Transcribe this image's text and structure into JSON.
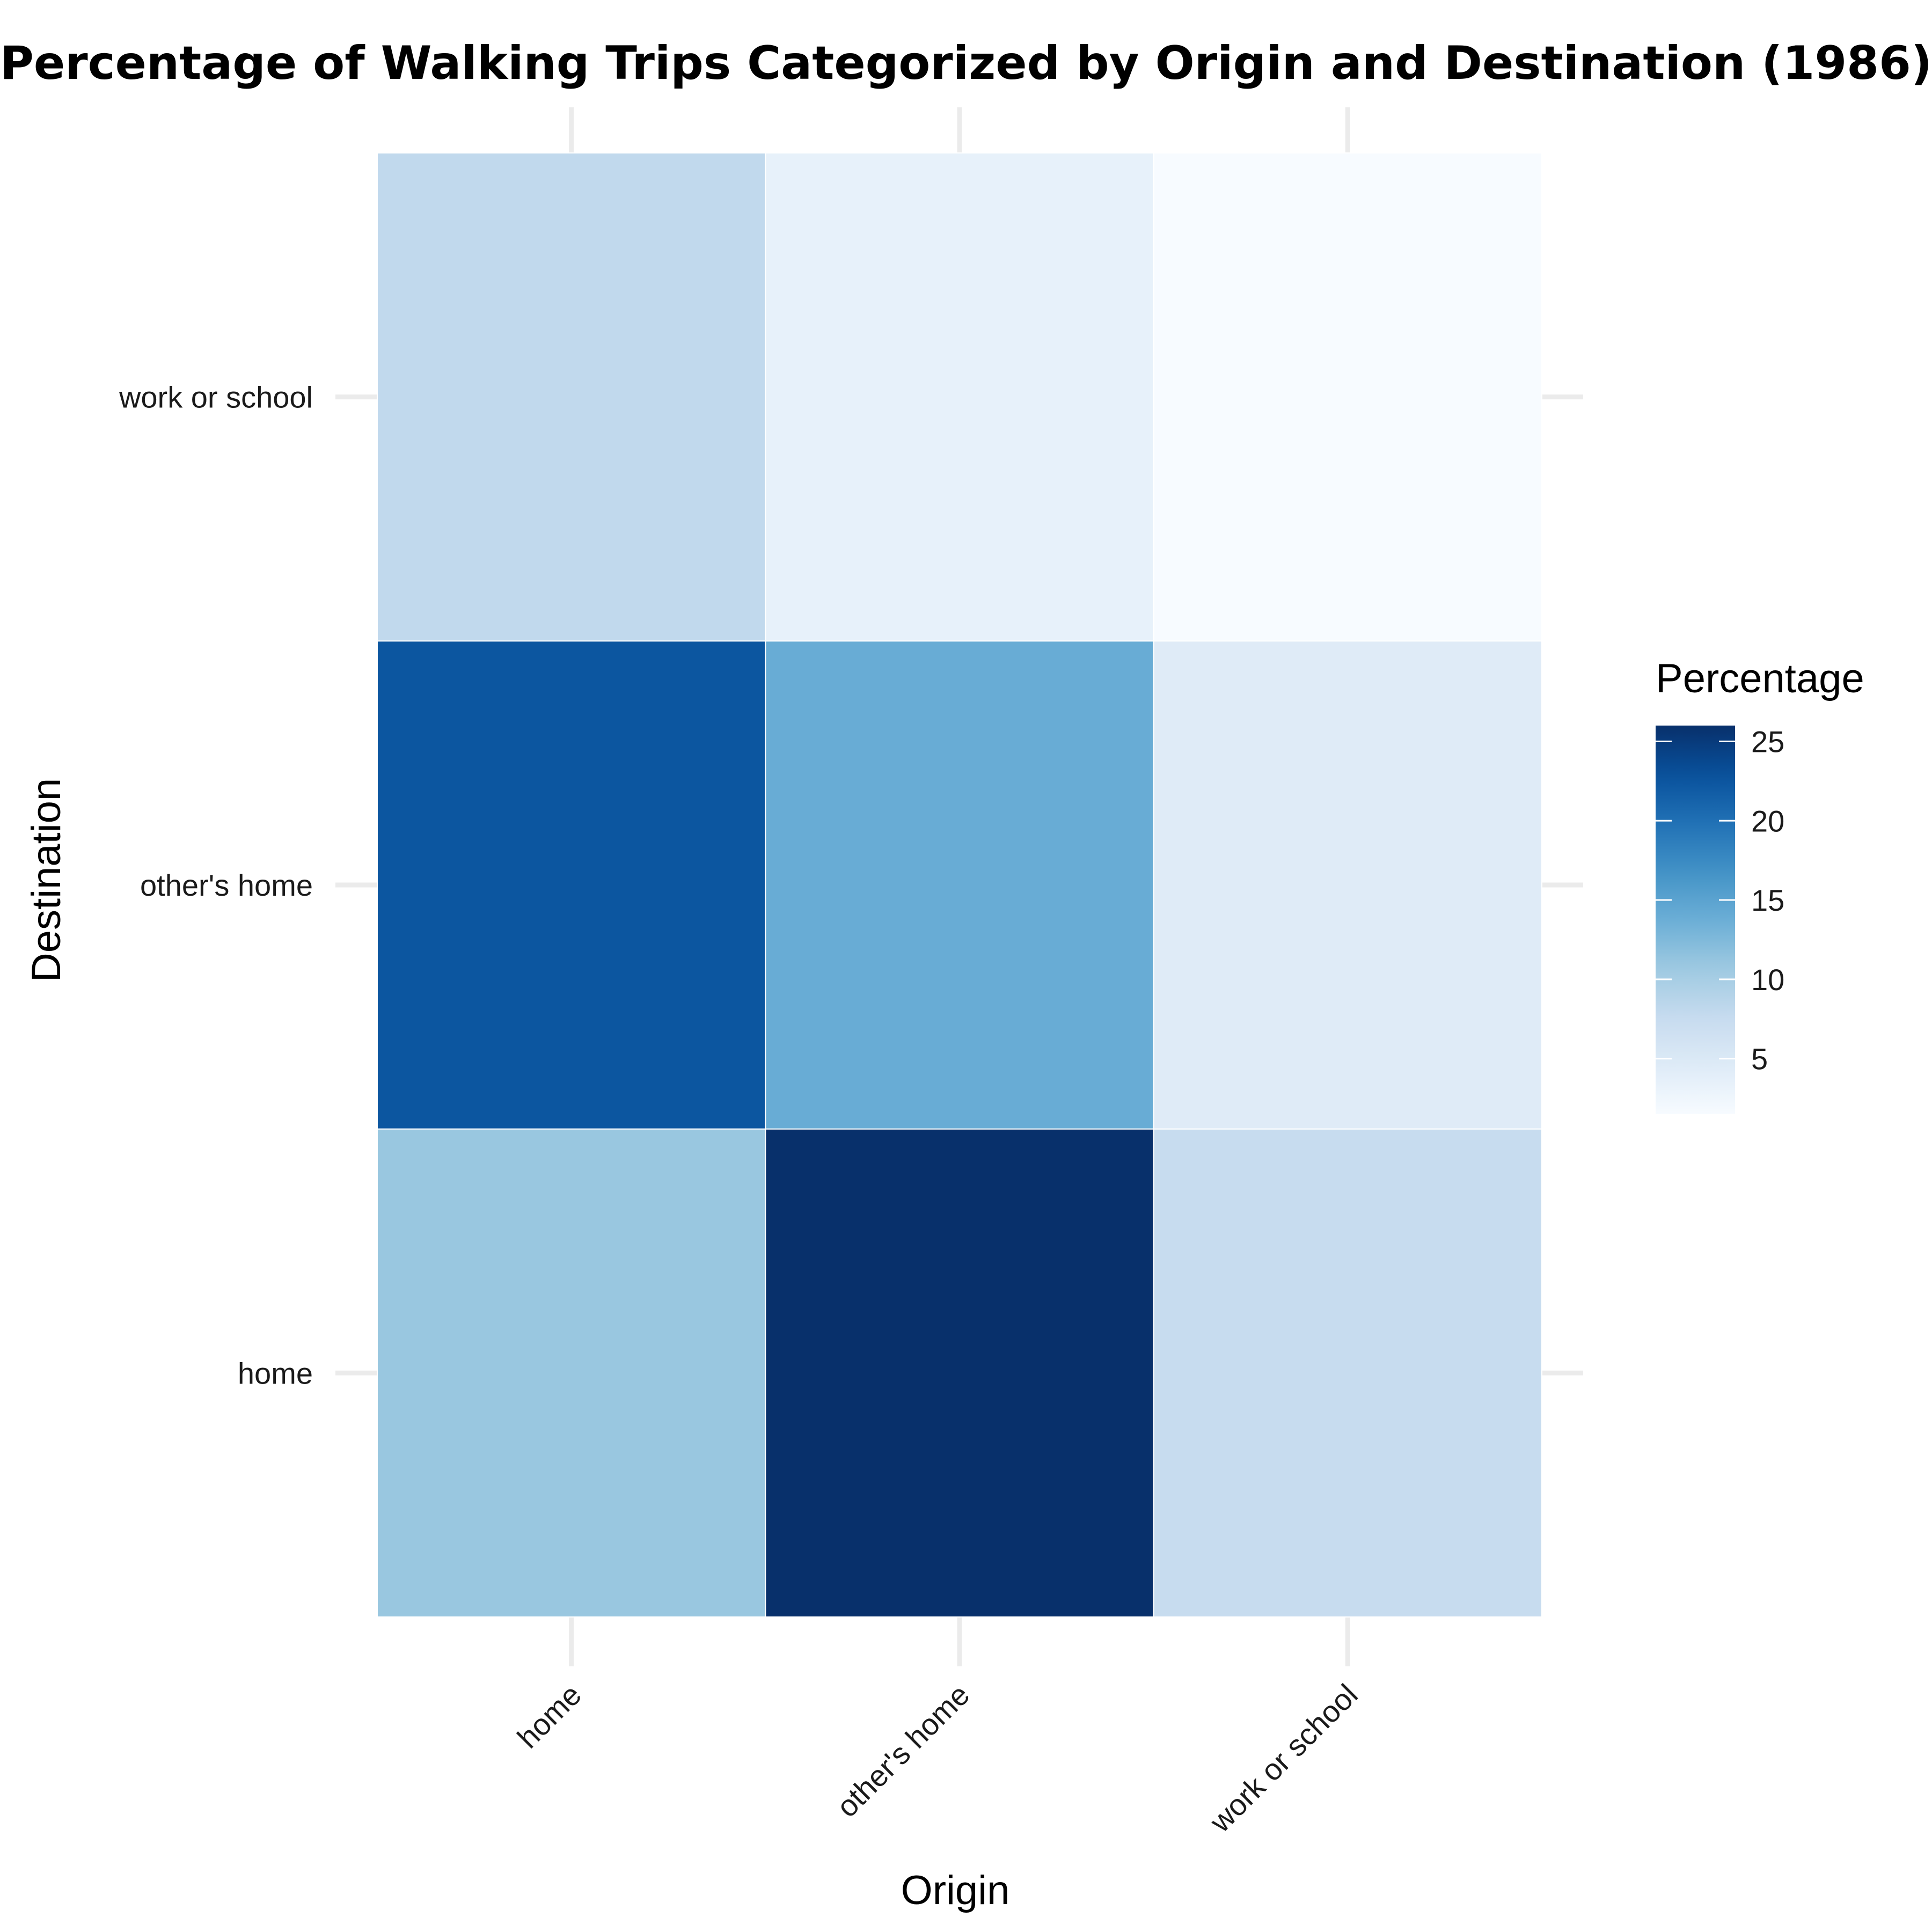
{
  "chart_data": {
    "type": "heatmap",
    "title": "Percentage of Walking Trips Categorized by Origin and Destination (1986)",
    "xlabel": "Origin",
    "ylabel": "Destination",
    "x_categories": [
      "home",
      "other's home",
      "work or school"
    ],
    "y_categories": [
      "home",
      "other's home",
      "work or school"
    ],
    "cells": [
      {
        "origin": "home",
        "destination": "home",
        "value": 11.0
      },
      {
        "origin": "other's home",
        "destination": "home",
        "value": 26.0
      },
      {
        "origin": "work or school",
        "destination": "home",
        "value": 7.5
      },
      {
        "origin": "home",
        "destination": "other's home",
        "value": 22.5
      },
      {
        "origin": "other's home",
        "destination": "other's home",
        "value": 14.0
      },
      {
        "origin": "work or school",
        "destination": "other's home",
        "value": 4.5
      },
      {
        "origin": "home",
        "destination": "work or school",
        "value": 8.0
      },
      {
        "origin": "other's home",
        "destination": "work or school",
        "value": 3.5
      },
      {
        "origin": "work or school",
        "destination": "work or school",
        "value": 1.5
      }
    ],
    "legend": {
      "title": "Percentage",
      "placement": "right",
      "range": [
        1.5,
        26.0
      ],
      "ticks": [
        5,
        10,
        15,
        20,
        25
      ],
      "tick_labels": [
        "5",
        "10",
        "15",
        "20",
        "25"
      ],
      "colormap": "Blues",
      "low_color": "#f7fbff",
      "high_color": "#08306b"
    },
    "grid": true
  }
}
